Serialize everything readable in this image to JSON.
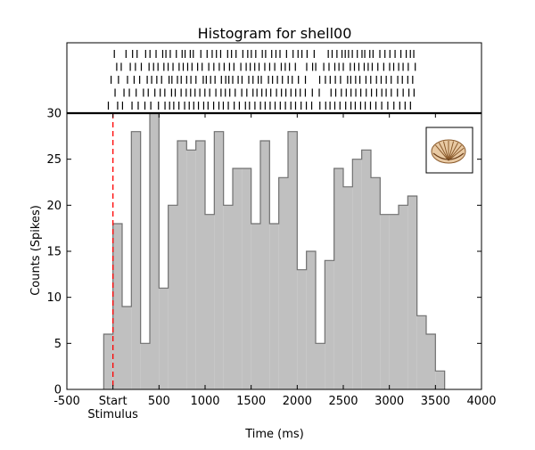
{
  "chart_data": {
    "type": "bar",
    "title": "Histogram for shell00",
    "xlabel": "Time (ms)",
    "ylabel": "Counts (Spikes)",
    "xlim": [
      -500,
      4000
    ],
    "ylim": [
      0,
      30
    ],
    "bin_width": 100,
    "xticks": [
      {
        "value": -500,
        "label": "-500"
      },
      {
        "value": 0,
        "label": "Start"
      },
      {
        "value": 500,
        "label": "500"
      },
      {
        "value": 1000,
        "label": "1000"
      },
      {
        "value": 1500,
        "label": "1500"
      },
      {
        "value": 2000,
        "label": "2000"
      },
      {
        "value": 2500,
        "label": "2500"
      },
      {
        "value": 3000,
        "label": "3000"
      },
      {
        "value": 3500,
        "label": "3500"
      },
      {
        "value": 4000,
        "label": "4000"
      }
    ],
    "yticks": [
      0,
      5,
      10,
      15,
      20,
      25,
      30
    ],
    "stimulus": {
      "x": 0,
      "label": "Stimulus",
      "color": "#ff0000"
    },
    "bin_starts": [
      -100,
      0,
      100,
      200,
      300,
      400,
      500,
      600,
      700,
      800,
      900,
      1000,
      1100,
      1200,
      1300,
      1400,
      1500,
      1600,
      1700,
      1800,
      1900,
      2000,
      2100,
      2200,
      2300,
      2400,
      2500,
      2600,
      2700,
      2800,
      2900,
      3000,
      3100,
      3200,
      3300,
      3400,
      3500
    ],
    "values": [
      6,
      18,
      9,
      28,
      5,
      30,
      11,
      20,
      27,
      26,
      27,
      19,
      28,
      20,
      24,
      24,
      18,
      27,
      18,
      23,
      28,
      13,
      15,
      5,
      14,
      24,
      22,
      25,
      26,
      23,
      19,
      19,
      20,
      21,
      8,
      6,
      2
    ],
    "bar_fill": "#c0c0c0",
    "bar_stroke": "#707070",
    "raster_trials": [
      [
        15,
        142,
        213,
        262,
        355,
        402,
        468,
        540,
        575,
        622,
        688,
        751,
        783,
        839,
        872,
        954,
        1022,
        1077,
        1123,
        1169,
        1245,
        1287,
        1336,
        1410,
        1463,
        1502,
        1550,
        1621,
        1657,
        1723,
        1769,
        1813,
        1884,
        1955,
        2009,
        2051,
        2107,
        2184,
        2337,
        2379,
        2431,
        2486,
        2521,
        2557,
        2598,
        2652,
        2703,
        2733,
        2788,
        2823,
        2897,
        2952,
        3006,
        3062,
        3125,
        3183,
        3228,
        3265
      ],
      [
        41,
        90,
        188,
        244,
        308,
        392,
        441,
        489,
        553,
        599,
        652,
        718,
        763,
        811,
        858,
        919,
        968,
        1040,
        1095,
        1154,
        1207,
        1265,
        1313,
        1388,
        1446,
        1490,
        1539,
        1586,
        1648,
        1701,
        1756,
        1827,
        1870,
        1916,
        1980,
        2103,
        2167,
        2201,
        2288,
        2345,
        2408,
        2453,
        2500,
        2576,
        2621,
        2669,
        2727,
        2770,
        2814,
        2875,
        2939,
        3003,
        3047,
        3101,
        3149,
        3205,
        3281
      ],
      [
        -20,
        60,
        158,
        230,
        290,
        372,
        420,
        476,
        528,
        609,
        640,
        700,
        741,
        800,
        846,
        901,
        980,
        1013,
        1060,
        1108,
        1177,
        1224,
        1258,
        1300,
        1359,
        1401,
        1474,
        1520,
        1577,
        1610,
        1688,
        1732,
        1785,
        1839,
        1902,
        1946,
        2013,
        2089,
        2244,
        2306,
        2358,
        2414,
        2470,
        2547,
        2581,
        2634,
        2680,
        2746,
        2798,
        2860,
        2911,
        2966,
        3020,
        3091,
        3141,
        3200,
        3253
      ],
      [
        23,
        120,
        178,
        252,
        331,
        383,
        455,
        513,
        563,
        636,
        676,
        740,
        795,
        843,
        891,
        943,
        998,
        1050,
        1117,
        1173,
        1220,
        1268,
        1327,
        1398,
        1453,
        1520,
        1563,
        1616,
        1663,
        1713,
        1775,
        1829,
        1877,
        1932,
        1984,
        2033,
        2088,
        2164,
        2239,
        2367,
        2418,
        2479,
        2532,
        2584,
        2636,
        2690,
        2749,
        2806,
        2862,
        2918,
        2965,
        3021,
        3088,
        3150,
        3212,
        3268
      ],
      [
        -50,
        51,
        104,
        207,
        274,
        347,
        411,
        494,
        565,
        615,
        660,
        716,
        778,
        828,
        877,
        928,
        985,
        1032,
        1093,
        1150,
        1198,
        1252,
        1316,
        1372,
        1438,
        1482,
        1541,
        1601,
        1652,
        1706,
        1760,
        1816,
        1872,
        1931,
        1982,
        2042,
        2099,
        2157,
        2246,
        2309,
        2356,
        2408,
        2464,
        2526,
        2583,
        2630,
        2688,
        2738,
        2795,
        2854,
        2917,
        2983,
        3049,
        3113,
        3171,
        3229
      ]
    ]
  }
}
